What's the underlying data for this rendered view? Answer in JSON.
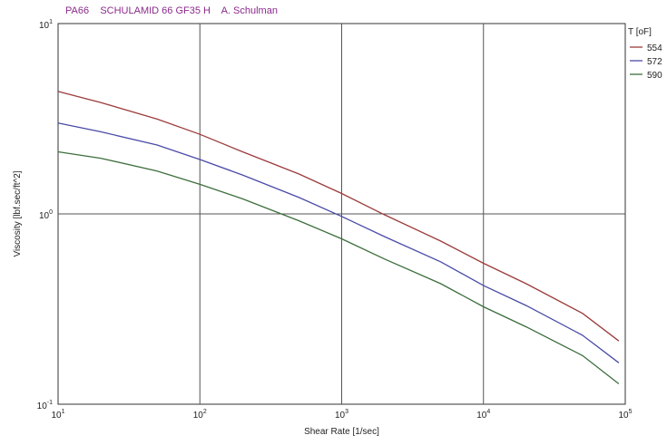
{
  "chart_data": {
    "type": "line",
    "title": "PA66    SCHULAMID 66 GF35 H    A. Schulman",
    "xlabel": "Shear Rate [1/sec]",
    "ylabel": "Viscosity [lbf.sec/ft^2]",
    "x_scale": "log",
    "y_scale": "log",
    "xlim": [
      10,
      100000
    ],
    "ylim": [
      0.1,
      10
    ],
    "x_ticks": [
      {
        "value": 10,
        "base": "10",
        "exp": "1"
      },
      {
        "value": 100,
        "base": "10",
        "exp": "2"
      },
      {
        "value": 1000,
        "base": "10",
        "exp": "3"
      },
      {
        "value": 10000,
        "base": "10",
        "exp": "4"
      },
      {
        "value": 100000,
        "base": "10",
        "exp": "5"
      }
    ],
    "y_ticks": [
      {
        "value": 0.1,
        "base": "10",
        "exp": "-1"
      },
      {
        "value": 1,
        "base": "10",
        "exp": "0"
      },
      {
        "value": 10,
        "base": "10",
        "exp": "1"
      }
    ],
    "grid": true,
    "legend_title": "T [oF]",
    "legend_position": "right",
    "x": [
      10,
      20,
      50,
      100,
      200,
      500,
      1000,
      2000,
      5000,
      10000,
      20000,
      50000,
      90000
    ],
    "series": [
      {
        "name": "554",
        "color": "#9c3b3b",
        "values": [
          4.4,
          3.85,
          3.15,
          2.62,
          2.12,
          1.62,
          1.28,
          0.99,
          0.72,
          0.55,
          0.43,
          0.3,
          0.215
        ]
      },
      {
        "name": "572",
        "color": "#4a4aa8",
        "values": [
          3.0,
          2.7,
          2.3,
          1.93,
          1.6,
          1.22,
          0.97,
          0.76,
          0.56,
          0.42,
          0.33,
          0.23,
          0.165
        ]
      },
      {
        "name": "590",
        "color": "#3c6e3c",
        "values": [
          2.12,
          1.96,
          1.68,
          1.43,
          1.2,
          0.92,
          0.74,
          0.58,
          0.43,
          0.325,
          0.255,
          0.18,
          0.128
        ]
      }
    ]
  }
}
